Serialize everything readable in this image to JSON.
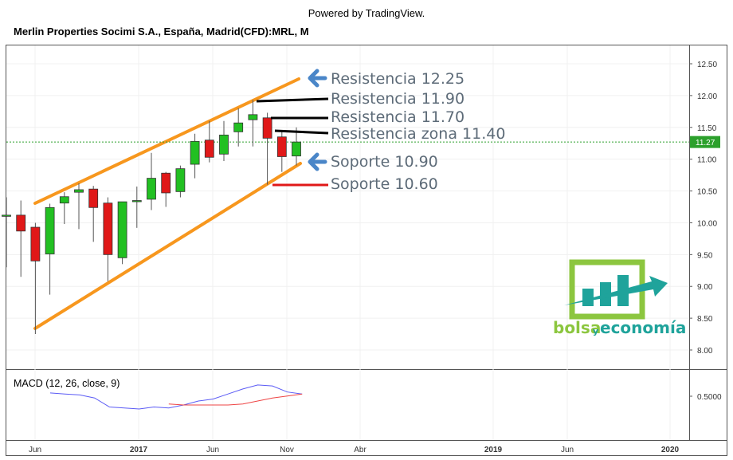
{
  "header": {
    "powered_by": "Powered by TradingView.",
    "title": "Merlin Properties Socimi S.A., España, Madrid(CFD):MRL, M"
  },
  "colors": {
    "up": "#22c022",
    "down": "#e01818",
    "channel": "#f7971e",
    "resistance": "#000000",
    "support_line": "#e01818",
    "arrow": "#4a86c8",
    "annotation_text": "#5d6b78",
    "last_price_line": "#2ca02c",
    "macd_line": "#5b5bf5",
    "signal_line": "#ee4444",
    "logo_green": "#8cc63f",
    "logo_teal": "#1fa39b"
  },
  "price_axis": {
    "ticks": [
      "12.50",
      "12.00",
      "11.50",
      "11.00",
      "10.50",
      "10.00",
      "9.50",
      "9.00",
      "8.50",
      "8.00"
    ],
    "last_price": "11.27"
  },
  "time_axis": {
    "labels": [
      "Jun",
      "2017",
      "Jun",
      "Nov",
      "Abr",
      "2019",
      "Jun",
      "2020"
    ]
  },
  "macd": {
    "title": "MACD (12, 26, close, 9)",
    "tick": "0.5000"
  },
  "annotations": {
    "r1": "Resistencia 12.25",
    "r2": "Resistencia 11.90",
    "r3": "Resistencia 11.70",
    "r4": "Resistencia zona 11.40",
    "s1": "Soporte 10.90",
    "s2": "Soporte 10.60"
  },
  "logo": {
    "part1": "bolsa",
    "part2": "y",
    "part3": "economía"
  },
  "chart_data": {
    "type": "candlestick",
    "title": "Merlin Properties Socimi S.A., España, Madrid(CFD):MRL, M",
    "interval": "monthly",
    "ylim": [
      7.6,
      12.7
    ],
    "grid": true,
    "candles": [
      {
        "date": "2016-04",
        "open": 10.12,
        "high": 10.4,
        "low": 9.3,
        "close": 10.12
      },
      {
        "date": "2016-05",
        "open": 10.12,
        "high": 10.35,
        "low": 9.15,
        "close": 9.87
      },
      {
        "date": "2016-06",
        "open": 9.93,
        "high": 10.0,
        "low": 8.25,
        "close": 9.4
      },
      {
        "date": "2016-07",
        "open": 9.51,
        "high": 10.3,
        "low": 8.87,
        "close": 10.24
      },
      {
        "date": "2016-08",
        "open": 10.31,
        "high": 10.48,
        "low": 9.98,
        "close": 10.41
      },
      {
        "date": "2016-09",
        "open": 10.48,
        "high": 10.62,
        "low": 9.9,
        "close": 10.52
      },
      {
        "date": "2016-10",
        "open": 10.53,
        "high": 10.58,
        "low": 9.7,
        "close": 10.24
      },
      {
        "date": "2016-11",
        "open": 10.31,
        "high": 10.4,
        "low": 9.08,
        "close": 9.5
      },
      {
        "date": "2016-12",
        "open": 9.45,
        "high": 10.33,
        "low": 9.35,
        "close": 10.33
      },
      {
        "date": "2017-01",
        "open": 10.34,
        "high": 10.57,
        "low": 9.92,
        "close": 10.35
      },
      {
        "date": "2017-02",
        "open": 10.37,
        "high": 11.1,
        "low": 10.2,
        "close": 10.7
      },
      {
        "date": "2017-03",
        "open": 10.78,
        "high": 10.8,
        "low": 10.25,
        "close": 10.47
      },
      {
        "date": "2017-04",
        "open": 10.49,
        "high": 10.9,
        "low": 10.4,
        "close": 10.85
      },
      {
        "date": "2017-05",
        "open": 10.92,
        "high": 11.4,
        "low": 10.7,
        "close": 11.28
      },
      {
        "date": "2017-06",
        "open": 11.3,
        "high": 11.6,
        "low": 10.95,
        "close": 11.03
      },
      {
        "date": "2017-07",
        "open": 11.08,
        "high": 11.6,
        "low": 10.97,
        "close": 11.38
      },
      {
        "date": "2017-08",
        "open": 11.43,
        "high": 11.8,
        "low": 11.2,
        "close": 11.57
      },
      {
        "date": "2017-09",
        "open": 11.62,
        "high": 11.93,
        "low": 11.2,
        "close": 11.7
      },
      {
        "date": "2017-10",
        "open": 11.65,
        "high": 11.73,
        "low": 10.6,
        "close": 11.33
      },
      {
        "date": "2017-11",
        "open": 11.35,
        "high": 11.43,
        "low": 10.8,
        "close": 11.04
      },
      {
        "date": "2017-12",
        "open": 11.05,
        "high": 11.5,
        "low": 10.9,
        "close": 11.27
      }
    ],
    "macd_series": [
      {
        "name": "MACD",
        "values": [
          0.52,
          0.51,
          0.5,
          0.47,
          0.38,
          0.37,
          0.36,
          0.38,
          0.37,
          0.4,
          0.44,
          0.46,
          0.51,
          0.56,
          0.6,
          0.59,
          0.53,
          0.51
        ]
      },
      {
        "name": "Signal",
        "values": [
          null,
          null,
          null,
          null,
          null,
          null,
          null,
          null,
          0.41,
          0.4,
          0.4,
          0.4,
          0.4,
          0.41,
          0.44,
          0.47,
          0.49,
          0.51
        ]
      }
    ],
    "macd_ylim": [
      0.05,
      0.75
    ]
  }
}
